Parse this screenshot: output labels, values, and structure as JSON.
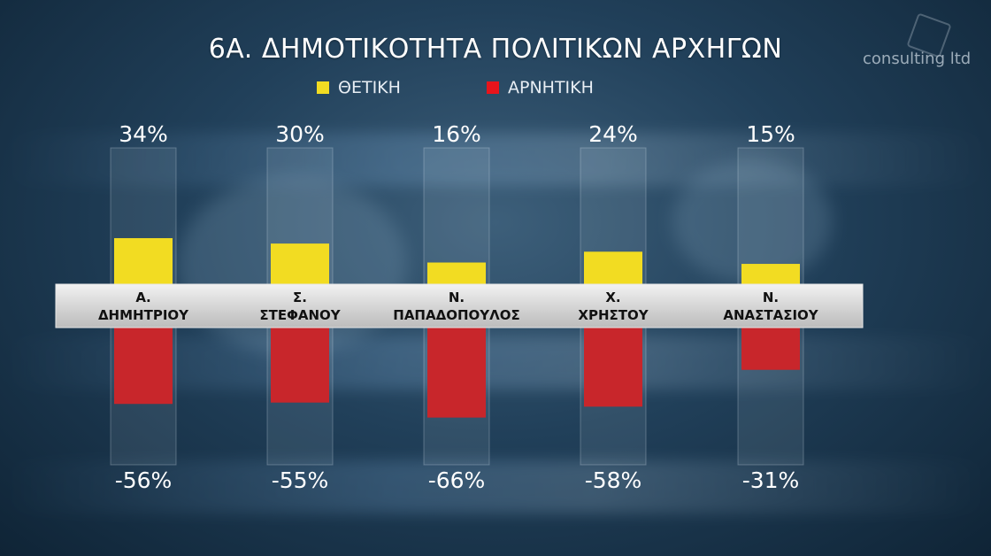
{
  "chart_data": {
    "type": "bar",
    "title": "6A. ΔΗΜΟΤΙΚΟΤΗΤΑ ΠΟΛΙΤΙΚΩΝ ΑΡΧΗΓΩΝ",
    "categories": [
      [
        "Α.",
        "ΔΗΜΗΤΡΙΟΥ"
      ],
      [
        "Σ.",
        "ΣΤΕΦΑΝΟΥ"
      ],
      [
        "Ν.",
        "ΠΑΠΑΔΟΠΟΥΛΟΣ"
      ],
      [
        "Χ.",
        "ΧΡΗΣΤΟΥ"
      ],
      [
        "Ν.",
        "ΑΝΑΣΤΑΣΙΟΥ"
      ]
    ],
    "series": [
      {
        "name": "ΘΕΤΙΚΗ",
        "color": "#f2dc22",
        "values": [
          34,
          30,
          16,
          24,
          15
        ],
        "labels": [
          "34%",
          "30%",
          "16%",
          "24%",
          "15%"
        ]
      },
      {
        "name": "ΑΡΝΗΤΙΚΗ",
        "color": "#c8262b",
        "values": [
          -56,
          -55,
          -66,
          -58,
          -31
        ],
        "labels": [
          "-56%",
          "-55%",
          "-66%",
          "-58%",
          "-31%"
        ]
      }
    ],
    "legend_position": "top-center",
    "grid": false
  },
  "logo": {
    "text": "consulting ltd"
  },
  "legend": {
    "positive": "ΘΕΤΙΚΗ",
    "negative": "ΑΡΝΗΤΙΚΗ"
  }
}
